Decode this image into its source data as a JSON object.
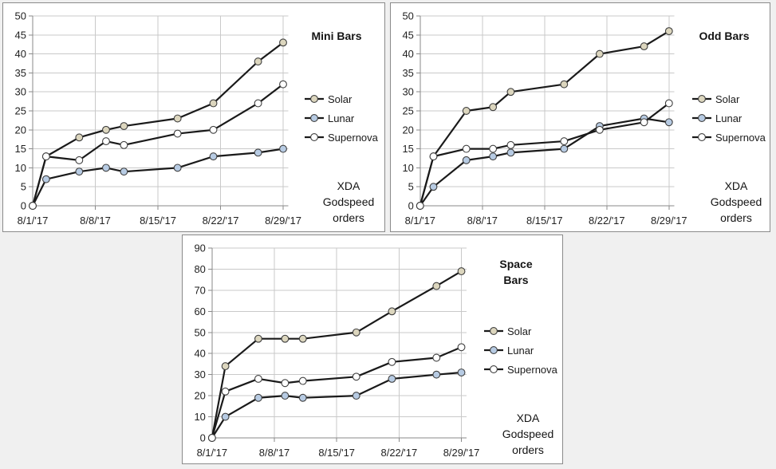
{
  "style": {
    "page_background": "#f0f0f0",
    "panel_background": "#ffffff",
    "panel_border": "#8a8a8a",
    "gridline": "#c9c9c9",
    "axis": "#8a8a8a",
    "line": "#1a1a1a",
    "marker_border": "#3f3f3f",
    "text": "#1f1f1f",
    "solar_fill": "#dcd6be",
    "lunar_fill": "#b7cbe3",
    "supernova_fill": "#ffffff"
  },
  "chart_data": [
    {
      "type": "line",
      "title": "Mini Bars",
      "title_lines": [
        "Mini Bars"
      ],
      "x_tick_labels": [
        "8/1/'17",
        "8/8/'17",
        "8/15/'17",
        "8/22/'17",
        "8/29/'17"
      ],
      "x_days": [
        0,
        1.5,
        5.2,
        8.2,
        10.2,
        16.2,
        20.2,
        25.2,
        28
      ],
      "ylim": [
        0,
        50
      ],
      "ystep": 5,
      "grid": true,
      "legend_position": "right",
      "series": [
        {
          "name": "Solar",
          "marker_fill": "#dcd6be",
          "values": [
            0,
            13,
            18,
            20,
            21,
            23,
            27,
            38,
            43
          ]
        },
        {
          "name": "Lunar",
          "marker_fill": "#b7cbe3",
          "values": [
            0,
            7,
            9,
            10,
            9,
            10,
            13,
            14,
            15
          ]
        },
        {
          "name": "Supernova",
          "marker_fill": "#ffffff",
          "values": [
            0,
            13,
            12,
            17,
            16,
            19,
            20,
            27,
            32
          ]
        }
      ],
      "annotation_lines": [
        "XDA",
        "Godspeed",
        "orders"
      ]
    },
    {
      "type": "line",
      "title": "Odd Bars",
      "title_lines": [
        "Odd Bars"
      ],
      "x_tick_labels": [
        "8/1/'17",
        "8/8/'17",
        "8/15/'17",
        "8/22/'17",
        "8/29/'17"
      ],
      "x_days": [
        0,
        1.5,
        5.2,
        8.2,
        10.2,
        16.2,
        20.2,
        25.2,
        28
      ],
      "ylim": [
        0,
        50
      ],
      "ystep": 5,
      "grid": true,
      "legend_position": "right",
      "series": [
        {
          "name": "Solar",
          "marker_fill": "#dcd6be",
          "values": [
            0,
            13,
            25,
            26,
            30,
            32,
            40,
            42,
            46
          ]
        },
        {
          "name": "Lunar",
          "marker_fill": "#b7cbe3",
          "values": [
            0,
            5,
            12,
            13,
            14,
            15,
            21,
            23,
            22
          ]
        },
        {
          "name": "Supernova",
          "marker_fill": "#ffffff",
          "values": [
            0,
            13,
            15,
            15,
            16,
            17,
            20,
            22,
            27
          ]
        }
      ],
      "annotation_lines": [
        "XDA",
        "Godspeed",
        "orders"
      ]
    },
    {
      "type": "line",
      "title": "Space Bars",
      "title_lines": [
        "Space",
        "Bars"
      ],
      "x_tick_labels": [
        "8/1/'17",
        "8/8/'17",
        "8/15/'17",
        "8/22/'17",
        "8/29/'17"
      ],
      "x_days": [
        0,
        1.5,
        5.2,
        8.2,
        10.2,
        16.2,
        20.2,
        25.2,
        28
      ],
      "ylim": [
        0,
        90
      ],
      "ystep": 10,
      "grid": true,
      "legend_position": "right",
      "series": [
        {
          "name": "Solar",
          "marker_fill": "#dcd6be",
          "values": [
            0,
            34,
            47,
            47,
            47,
            50,
            60,
            72,
            79
          ]
        },
        {
          "name": "Lunar",
          "marker_fill": "#b7cbe3",
          "values": [
            0,
            10,
            19,
            20,
            19,
            20,
            28,
            30,
            31
          ]
        },
        {
          "name": "Supernova",
          "marker_fill": "#ffffff",
          "values": [
            0,
            22,
            28,
            26,
            27,
            29,
            36,
            38,
            43
          ]
        }
      ],
      "annotation_lines": [
        "XDA",
        "Godspeed",
        "orders"
      ]
    }
  ]
}
